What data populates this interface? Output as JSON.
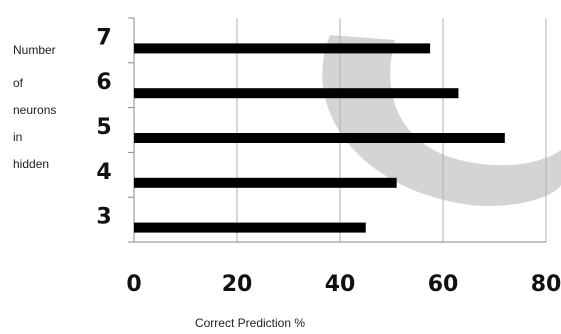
{
  "chart_data": {
    "type": "bar",
    "orientation": "horizontal",
    "categories": [
      "3",
      "4",
      "5",
      "6",
      "7"
    ],
    "values": [
      45,
      51,
      72,
      63,
      57.5
    ],
    "xlabel": "Correct Prediction %",
    "ylabel_lines": [
      "Number",
      "of",
      "neurons",
      "in",
      "hidden"
    ],
    "xticks": [
      "0",
      "20",
      "40",
      "60",
      "80"
    ],
    "xlim": [
      0,
      80
    ],
    "grid": "vertical",
    "colors": {
      "bar": "#000000",
      "grid": "#b0b0b0",
      "axis": "#888888",
      "watermark": "#d4d4d4"
    }
  }
}
